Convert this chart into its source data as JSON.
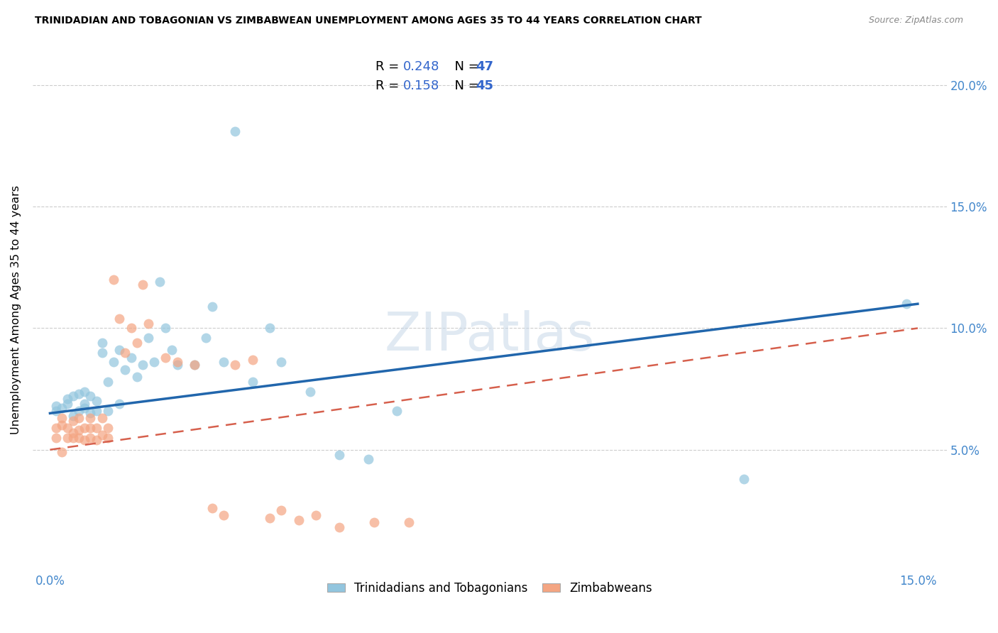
{
  "title": "TRINIDADIAN AND TOBAGONIAN VS ZIMBABWEAN UNEMPLOYMENT AMONG AGES 35 TO 44 YEARS CORRELATION CHART",
  "source": "Source: ZipAtlas.com",
  "ylabel": "Unemployment Among Ages 35 to 44 years",
  "ylim": [
    0.0,
    0.215
  ],
  "xlim": [
    -0.003,
    0.155
  ],
  "yticks": [
    0.05,
    0.1,
    0.15,
    0.2
  ],
  "ytick_labels": [
    "5.0%",
    "10.0%",
    "15.0%",
    "20.0%"
  ],
  "xticks": [
    0.0,
    0.025,
    0.05,
    0.075,
    0.1,
    0.125,
    0.15
  ],
  "xtick_labels": [
    "0.0%",
    "",
    "",
    "",
    "",
    "",
    "15.0%"
  ],
  "legend1_R": "0.248",
  "legend1_N": "47",
  "legend2_R": "0.158",
  "legend2_N": "45",
  "color_blue": "#92c5de",
  "color_pink": "#f4a582",
  "line_blue": "#2166ac",
  "line_pink": "#d6604d",
  "watermark": "ZIPatlas",
  "trinidadian_x": [
    0.001,
    0.001,
    0.002,
    0.003,
    0.003,
    0.004,
    0.004,
    0.005,
    0.005,
    0.006,
    0.006,
    0.006,
    0.007,
    0.007,
    0.008,
    0.008,
    0.009,
    0.009,
    0.01,
    0.01,
    0.011,
    0.012,
    0.012,
    0.013,
    0.014,
    0.015,
    0.016,
    0.017,
    0.018,
    0.019,
    0.02,
    0.021,
    0.022,
    0.025,
    0.027,
    0.028,
    0.03,
    0.032,
    0.035,
    0.038,
    0.04,
    0.045,
    0.05,
    0.055,
    0.06,
    0.12,
    0.148
  ],
  "trinidadian_y": [
    0.066,
    0.068,
    0.067,
    0.071,
    0.069,
    0.064,
    0.072,
    0.066,
    0.073,
    0.067,
    0.069,
    0.074,
    0.065,
    0.072,
    0.066,
    0.07,
    0.09,
    0.094,
    0.078,
    0.066,
    0.086,
    0.069,
    0.091,
    0.083,
    0.088,
    0.08,
    0.085,
    0.096,
    0.086,
    0.119,
    0.1,
    0.091,
    0.085,
    0.085,
    0.096,
    0.109,
    0.086,
    0.181,
    0.078,
    0.1,
    0.086,
    0.074,
    0.048,
    0.046,
    0.066,
    0.038,
    0.11
  ],
  "zimbabwean_x": [
    0.001,
    0.001,
    0.002,
    0.002,
    0.002,
    0.003,
    0.003,
    0.004,
    0.004,
    0.004,
    0.005,
    0.005,
    0.005,
    0.006,
    0.006,
    0.007,
    0.007,
    0.007,
    0.008,
    0.008,
    0.009,
    0.009,
    0.01,
    0.01,
    0.011,
    0.012,
    0.013,
    0.014,
    0.015,
    0.016,
    0.017,
    0.02,
    0.022,
    0.025,
    0.028,
    0.03,
    0.032,
    0.035,
    0.038,
    0.04,
    0.043,
    0.046,
    0.05,
    0.056,
    0.062
  ],
  "zimbabwean_y": [
    0.055,
    0.059,
    0.06,
    0.063,
    0.049,
    0.055,
    0.059,
    0.055,
    0.057,
    0.062,
    0.055,
    0.058,
    0.063,
    0.054,
    0.059,
    0.055,
    0.059,
    0.063,
    0.054,
    0.059,
    0.056,
    0.063,
    0.055,
    0.059,
    0.12,
    0.104,
    0.09,
    0.1,
    0.094,
    0.118,
    0.102,
    0.088,
    0.086,
    0.085,
    0.026,
    0.023,
    0.085,
    0.087,
    0.022,
    0.025,
    0.021,
    0.023,
    0.018,
    0.02,
    0.02
  ]
}
